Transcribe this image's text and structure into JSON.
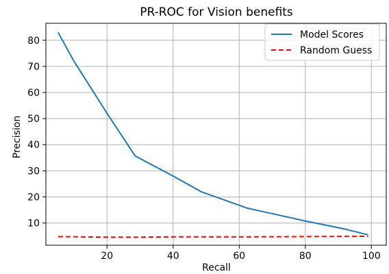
{
  "chart_data": {
    "type": "line",
    "title": "PR-ROC for Vision benefits",
    "xlabel": "Recall",
    "ylabel": "Precision",
    "xlim": [
      1.5,
      104.5
    ],
    "ylim": [
      1.5,
      86.5
    ],
    "xticks": [
      20,
      40,
      60,
      80,
      100
    ],
    "yticks": [
      10,
      20,
      30,
      40,
      50,
      60,
      70,
      80
    ],
    "grid": true,
    "legend_position": "top-right",
    "series": [
      {
        "name": "Model Scores",
        "color": "#1f77b4",
        "style": "solid",
        "points": [
          [
            5.2,
            83.0
          ],
          [
            10,
            72
          ],
          [
            20,
            52
          ],
          [
            28.5,
            35.7
          ],
          [
            40,
            28
          ],
          [
            48.5,
            22
          ],
          [
            62.5,
            15.7
          ],
          [
            80,
            10.8
          ],
          [
            92,
            7.7
          ],
          [
            99,
            5.5
          ]
        ]
      },
      {
        "name": "Random Guess",
        "color": "#ff0000",
        "style": "dashed",
        "points": [
          [
            5.2,
            4.8
          ],
          [
            20,
            4.6
          ],
          [
            30,
            4.6
          ],
          [
            40,
            4.7
          ],
          [
            60,
            4.7
          ],
          [
            80,
            4.8
          ],
          [
            99,
            4.9
          ]
        ]
      }
    ]
  }
}
